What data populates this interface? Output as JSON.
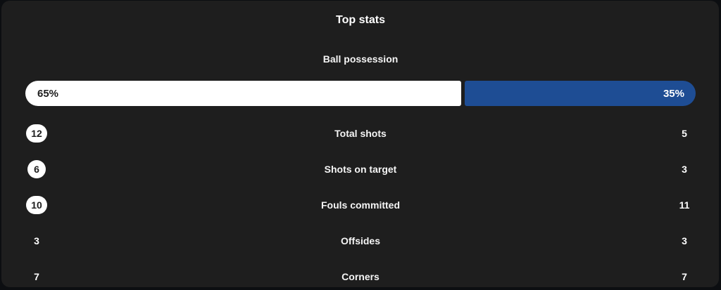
{
  "panel": {
    "title": "Top stats"
  },
  "colors": {
    "panel_bg": "#1e1e1e",
    "outer_bg": "#0c0e11",
    "home_bar": "#ffffff",
    "away_bar": "#1e4d94",
    "badge_bg": "#ffffff",
    "badge_text": "#1d1d1d",
    "text": "#ffffff"
  },
  "possession": {
    "label": "Ball possession",
    "home_pct": 65,
    "away_pct": 35,
    "home_text": "65%",
    "away_text": "35%"
  },
  "stats": [
    {
      "label": "Total shots",
      "home": "12",
      "away": "5",
      "home_highlight": true,
      "away_highlight": false
    },
    {
      "label": "Shots on target",
      "home": "6",
      "away": "3",
      "home_highlight": true,
      "away_highlight": false
    },
    {
      "label": "Fouls committed",
      "home": "10",
      "away": "11",
      "home_highlight": true,
      "away_highlight": false
    },
    {
      "label": "Offsides",
      "home": "3",
      "away": "3",
      "home_highlight": false,
      "away_highlight": false
    },
    {
      "label": "Corners",
      "home": "7",
      "away": "7",
      "home_highlight": false,
      "away_highlight": false
    }
  ]
}
